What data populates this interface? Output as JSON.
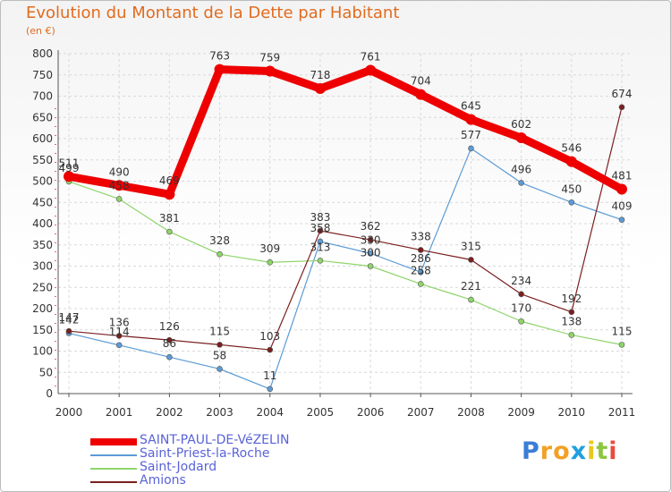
{
  "title": "Evolution du Montant de la Dette par Habitant",
  "subtitle": "(en €)",
  "logo": {
    "letters": [
      "P",
      "r",
      "o",
      "x",
      "i",
      "t",
      "i"
    ],
    "colors": [
      "#3b7dd8",
      "#f3a024",
      "#f3a024",
      "#1fa0e0",
      "#e8c820",
      "#8cc63f",
      "#e94b3c"
    ]
  },
  "chart_data": {
    "type": "line",
    "x": [
      "2000",
      "2001",
      "2002",
      "2003",
      "2004",
      "2005",
      "2006",
      "2007",
      "2008",
      "2009",
      "2010",
      "2011"
    ],
    "ylim": [
      0,
      800
    ],
    "yticks": [
      "0",
      "50",
      "100",
      "150",
      "200",
      "250",
      "300",
      "350",
      "400",
      "450",
      "500",
      "550",
      "600",
      "650",
      "700",
      "750",
      "800"
    ],
    "grid": true,
    "legend_position": "bottom-left",
    "series": [
      {
        "name": "SAINT-PAUL-DE-VéZELIN",
        "color": "#ee0000",
        "values": [
          511,
          490,
          469,
          763,
          759,
          718,
          761,
          704,
          645,
          602,
          546,
          481
        ],
        "labels": [
          "511",
          "490",
          "469",
          "763",
          "759",
          "718",
          "761",
          "704",
          "645",
          "602",
          "546",
          "481"
        ]
      },
      {
        "name": "Saint-Priest-la-Roche",
        "color": "#5b9bd5",
        "values": [
          142,
          114,
          86,
          58,
          11,
          358,
          330,
          286,
          577,
          496,
          450,
          409
        ],
        "labels": [
          "142",
          "114",
          "86",
          "58",
          "11",
          "358",
          "330",
          "286",
          "577",
          "496",
          "450",
          "409"
        ]
      },
      {
        "name": "Saint-Jodard",
        "color": "#8fd46a",
        "values": [
          499,
          458,
          381,
          328,
          309,
          313,
          300,
          258,
          221,
          170,
          138,
          115
        ],
        "labels": [
          "499",
          "458",
          "381",
          "328",
          "309",
          "313",
          "300",
          "258",
          "221",
          "170",
          "138",
          "115"
        ]
      },
      {
        "name": "Amions",
        "color": "#7a1f1f",
        "values": [
          147,
          136,
          126,
          115,
          103,
          383,
          362,
          338,
          315,
          234,
          192,
          674
        ],
        "labels": [
          "147",
          "136",
          "126",
          "115",
          "103",
          "383",
          "362",
          "338",
          "315",
          "234",
          "192",
          "674"
        ]
      }
    ]
  }
}
